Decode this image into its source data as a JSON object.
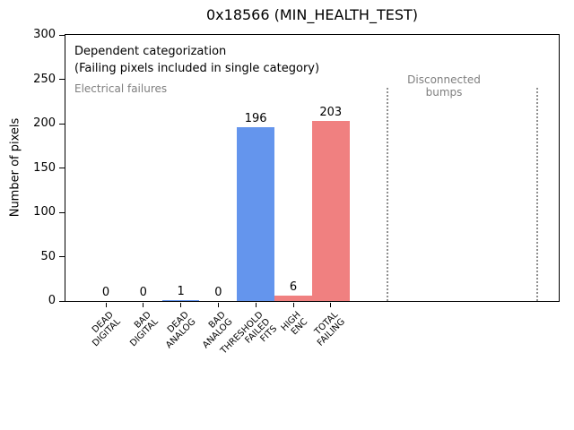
{
  "figure": {
    "title": "0x18566 (MIN_HEALTH_TEST)"
  },
  "chart_data": {
    "type": "bar",
    "title": "0x18566 (MIN_HEALTH_TEST)",
    "xlabel": "",
    "ylabel": "Number of pixels",
    "categories": [
      "DEAD\nDIGITAL",
      "BAD\nDIGITAL",
      "DEAD\nANALOG",
      "BAD\nANALOG",
      "THRESHOLD\nFAILED\nFITS",
      "HIGH\nENC",
      "TOTAL\nFAILING"
    ],
    "values": [
      0,
      0,
      1,
      0,
      196,
      6,
      203
    ],
    "bar_value_labels": [
      "0",
      "0",
      "1",
      "0",
      "196",
      "6",
      "203"
    ],
    "bar_colors": [
      "#6495ed",
      "#6495ed",
      "#6495ed",
      "#6495ed",
      "#6495ed",
      "#f08080",
      "#f08080"
    ],
    "ylim": [
      0,
      300
    ],
    "yticks": [
      0,
      50,
      100,
      150,
      200,
      250,
      300
    ],
    "grid": false,
    "legend": null,
    "separator_lines_x": [
      7.5,
      11.5
    ],
    "annotations": {
      "dependent_line1": "Dependent categorization",
      "dependent_line2": "(Failing pixels included in single category)",
      "electrical": "Electrical failures",
      "disconnected": "Disconnected\nbumps"
    },
    "colors": {
      "bar_blue": "#6495ed",
      "bar_red": "#f08080",
      "annotation_gray": "#7f7f7f",
      "separator_gray": "#909090",
      "text": "#000000"
    }
  }
}
